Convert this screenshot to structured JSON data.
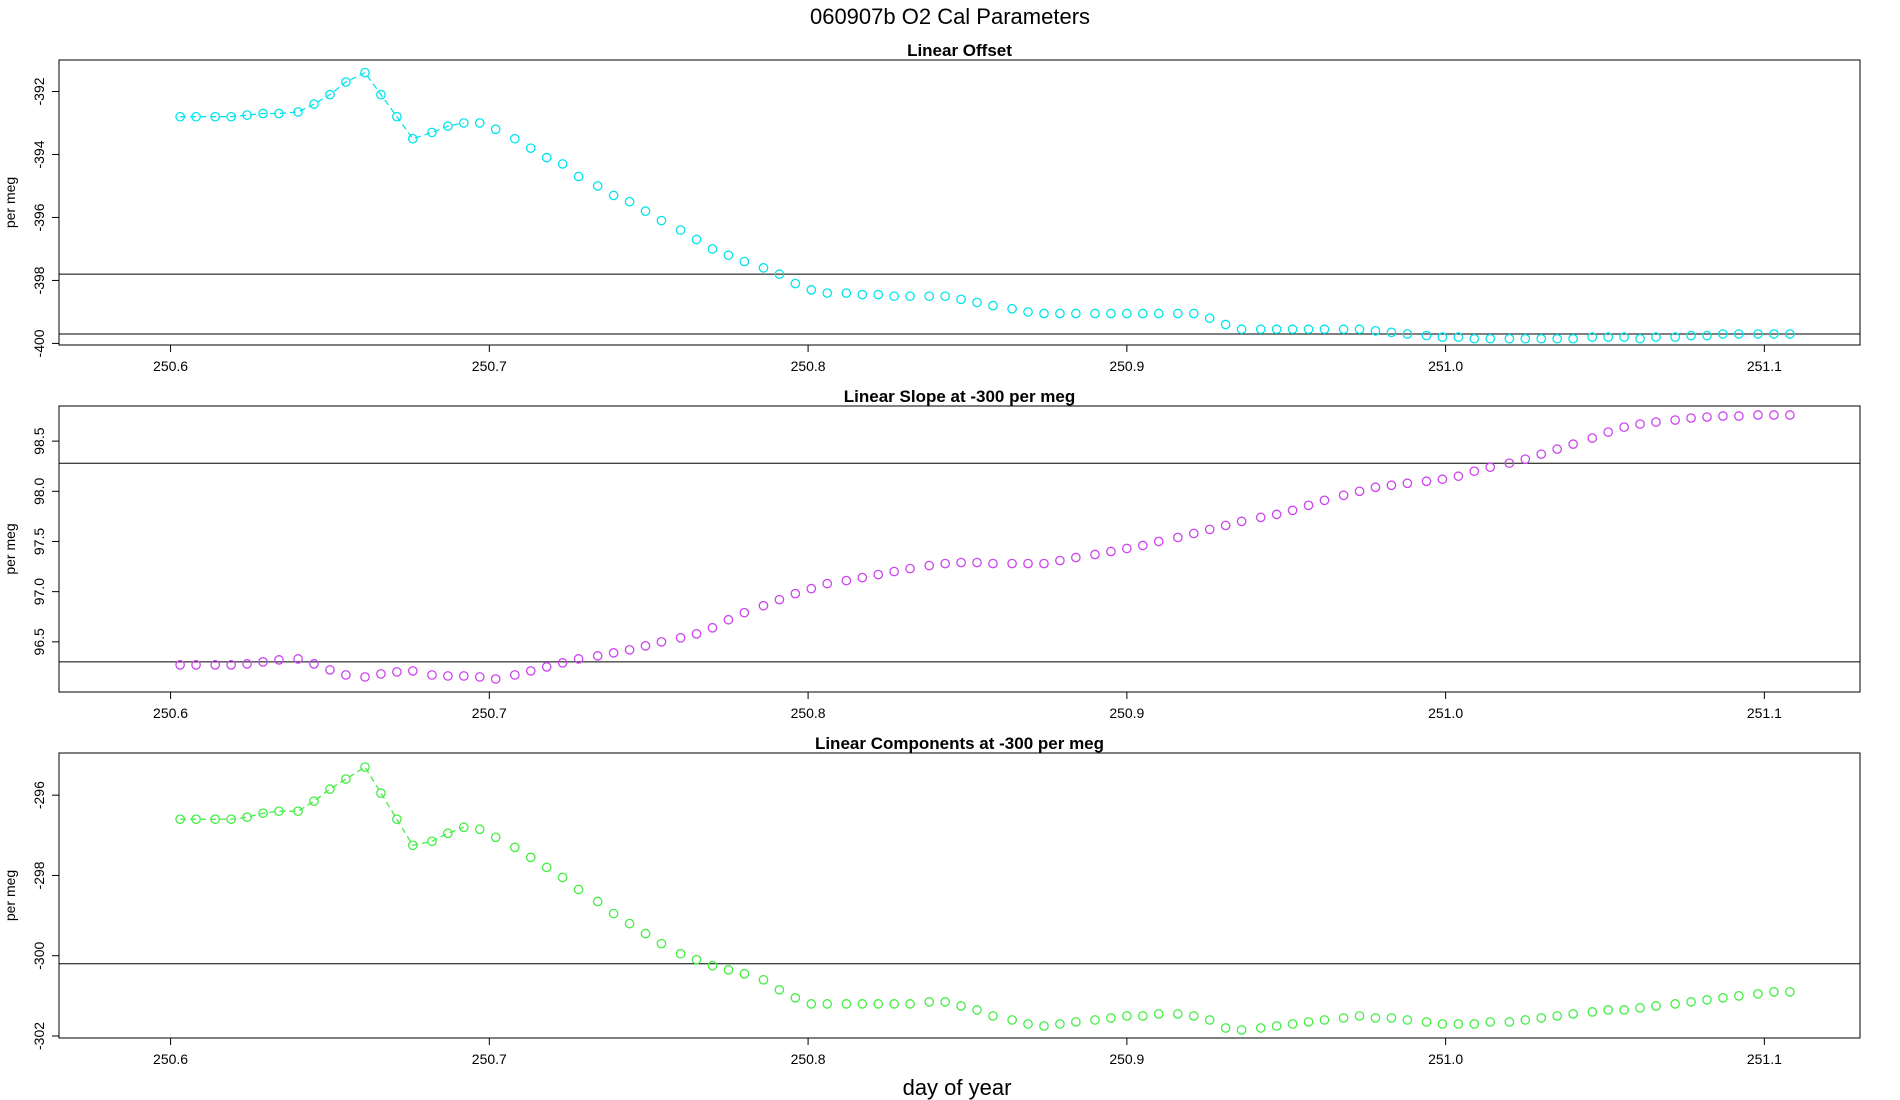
{
  "title": "060907b   O2 Cal Parameters",
  "xlabel": "day of year",
  "chart_data": [
    {
      "type": "scatter",
      "title": "Linear Offset",
      "ylabel": "per meg",
      "color": "#00e5ee",
      "connect_first_points": 10,
      "xlim": [
        250.565,
        251.13
      ],
      "ylim": [
        -400.05,
        -391.0
      ],
      "xticks": [
        250.6,
        250.7,
        250.8,
        250.9,
        251.0,
        251.1
      ],
      "xtick_labels": [
        "250.6",
        "250.7",
        "250.8",
        "250.9",
        "251.0",
        "251.1"
      ],
      "yticks": [
        -392,
        -394,
        -396,
        -398,
        -400
      ],
      "ytick_labels": [
        "-392",
        "-394",
        "-396",
        "-398",
        "-400"
      ],
      "hlines": [
        -397.8,
        -399.7
      ],
      "x": [
        250.603,
        250.608,
        250.614,
        250.619,
        250.624,
        250.629,
        250.634,
        250.64,
        250.645,
        250.65,
        250.655,
        250.661,
        250.666,
        250.671,
        250.676,
        250.682,
        250.687,
        250.692,
        250.697,
        250.702,
        250.708,
        250.713,
        250.718,
        250.723,
        250.728,
        250.734,
        250.739,
        250.744,
        250.749,
        250.754,
        250.76,
        250.765,
        250.77,
        250.775,
        250.78,
        250.786,
        250.791,
        250.796,
        250.801,
        250.806,
        250.812,
        250.817,
        250.822,
        250.827,
        250.832,
        250.838,
        250.843,
        250.848,
        250.853,
        250.858,
        250.864,
        250.869,
        250.874,
        250.879,
        250.884,
        250.89,
        250.895,
        250.9,
        250.905,
        250.91,
        250.916,
        250.921,
        250.926,
        250.931,
        250.936,
        250.942,
        250.947,
        250.952,
        250.957,
        250.962,
        250.968,
        250.973,
        250.978,
        250.983,
        250.988,
        250.994,
        250.999,
        251.004,
        251.009,
        251.014,
        251.02,
        251.025,
        251.03,
        251.035,
        251.04,
        251.046,
        251.051,
        251.056,
        251.061,
        251.066,
        251.072,
        251.077,
        251.082,
        251.087,
        251.092,
        251.098,
        251.103,
        251.108
      ],
      "y": [
        -392.8,
        -392.8,
        -392.8,
        -392.8,
        -392.75,
        -392.7,
        -392.7,
        -392.65,
        -392.4,
        -392.1,
        -391.7,
        -391.4,
        -392.1,
        -392.8,
        -393.5,
        -393.3,
        -393.1,
        -393.0,
        -393.0,
        -393.2,
        -393.5,
        -393.8,
        -394.1,
        -394.3,
        -394.7,
        -395.0,
        -395.3,
        -395.5,
        -395.8,
        -396.1,
        -396.4,
        -396.7,
        -397.0,
        -397.2,
        -397.4,
        -397.6,
        -397.8,
        -398.1,
        -398.3,
        -398.4,
        -398.4,
        -398.45,
        -398.45,
        -398.5,
        -398.5,
        -398.5,
        -398.5,
        -398.6,
        -398.7,
        -398.8,
        -398.9,
        -399.0,
        -399.05,
        -399.05,
        -399.05,
        -399.05,
        -399.05,
        -399.05,
        -399.05,
        -399.05,
        -399.05,
        -399.05,
        -399.2,
        -399.4,
        -399.55,
        -399.55,
        -399.55,
        -399.55,
        -399.55,
        -399.55,
        -399.55,
        -399.55,
        -399.6,
        -399.65,
        -399.7,
        -399.75,
        -399.8,
        -399.8,
        -399.85,
        -399.85,
        -399.85,
        -399.85,
        -399.85,
        -399.85,
        -399.85,
        -399.8,
        -399.8,
        -399.8,
        -399.85,
        -399.8,
        -399.8,
        -399.75,
        -399.75,
        -399.7,
        -399.7,
        -399.7,
        -399.7,
        -399.7
      ]
    },
    {
      "type": "scatter",
      "title": "Linear Slope at -300 per meg",
      "ylabel": "per meg",
      "color": "#cc44ee",
      "connect_first_points": 0,
      "xlim": [
        250.565,
        251.13
      ],
      "ylim": [
        96.0,
        98.85
      ],
      "xticks": [
        250.6,
        250.7,
        250.8,
        250.9,
        251.0,
        251.1
      ],
      "xtick_labels": [
        "250.6",
        "250.7",
        "250.8",
        "250.9",
        "251.0",
        "251.1"
      ],
      "yticks": [
        96.5,
        97.0,
        97.5,
        98.0,
        98.5
      ],
      "ytick_labels": [
        "96.5",
        "97.0",
        "97.5",
        "98.0",
        "98.5"
      ],
      "hlines": [
        98.28,
        96.3
      ],
      "x": [
        250.603,
        250.608,
        250.614,
        250.619,
        250.624,
        250.629,
        250.634,
        250.64,
        250.645,
        250.65,
        250.655,
        250.661,
        250.666,
        250.671,
        250.676,
        250.682,
        250.687,
        250.692,
        250.697,
        250.702,
        250.708,
        250.713,
        250.718,
        250.723,
        250.728,
        250.734,
        250.739,
        250.744,
        250.749,
        250.754,
        250.76,
        250.765,
        250.77,
        250.775,
        250.78,
        250.786,
        250.791,
        250.796,
        250.801,
        250.806,
        250.812,
        250.817,
        250.822,
        250.827,
        250.832,
        250.838,
        250.843,
        250.848,
        250.853,
        250.858,
        250.864,
        250.869,
        250.874,
        250.879,
        250.884,
        250.89,
        250.895,
        250.9,
        250.905,
        250.91,
        250.916,
        250.921,
        250.926,
        250.931,
        250.936,
        250.942,
        250.947,
        250.952,
        250.957,
        250.962,
        250.968,
        250.973,
        250.978,
        250.983,
        250.988,
        250.994,
        250.999,
        251.004,
        251.009,
        251.014,
        251.02,
        251.025,
        251.03,
        251.035,
        251.04,
        251.046,
        251.051,
        251.056,
        251.061,
        251.066,
        251.072,
        251.077,
        251.082,
        251.087,
        251.092,
        251.098,
        251.103,
        251.108
      ],
      "y": [
        96.27,
        96.27,
        96.27,
        96.27,
        96.28,
        96.3,
        96.32,
        96.33,
        96.28,
        96.22,
        96.17,
        96.15,
        96.18,
        96.2,
        96.21,
        96.17,
        96.16,
        96.16,
        96.15,
        96.13,
        96.17,
        96.21,
        96.25,
        96.29,
        96.33,
        96.36,
        96.39,
        96.42,
        96.46,
        96.5,
        96.54,
        96.58,
        96.64,
        96.72,
        96.79,
        96.86,
        96.92,
        96.98,
        97.03,
        97.08,
        97.11,
        97.14,
        97.17,
        97.2,
        97.23,
        97.26,
        97.28,
        97.29,
        97.29,
        97.28,
        97.28,
        97.28,
        97.28,
        97.31,
        97.34,
        97.37,
        97.4,
        97.43,
        97.46,
        97.5,
        97.54,
        97.58,
        97.62,
        97.66,
        97.7,
        97.74,
        97.77,
        97.81,
        97.86,
        97.91,
        97.96,
        98.0,
        98.04,
        98.06,
        98.08,
        98.1,
        98.12,
        98.15,
        98.2,
        98.24,
        98.28,
        98.32,
        98.37,
        98.42,
        98.47,
        98.53,
        98.59,
        98.64,
        98.67,
        98.69,
        98.71,
        98.73,
        98.74,
        98.75,
        98.75,
        98.76,
        98.76,
        98.76
      ]
    },
    {
      "type": "scatter",
      "title": "Linear Components at -300 per meg",
      "ylabel": "per meg",
      "color": "#44ee44",
      "connect_first_points": 10,
      "xlim": [
        250.565,
        251.13
      ],
      "ylim": [
        -302.05,
        -294.95
      ],
      "xticks": [
        250.6,
        250.7,
        250.8,
        250.9,
        251.0,
        251.1
      ],
      "xtick_labels": [
        "250.6",
        "250.7",
        "250.8",
        "250.9",
        "251.0",
        "251.1"
      ],
      "yticks": [
        -296,
        -298,
        -300,
        -302
      ],
      "ytick_labels": [
        "-296",
        "-298",
        "-300",
        "-302"
      ],
      "hlines": [
        -300.2
      ],
      "x": [
        250.603,
        250.608,
        250.614,
        250.619,
        250.624,
        250.629,
        250.634,
        250.64,
        250.645,
        250.65,
        250.655,
        250.661,
        250.666,
        250.671,
        250.676,
        250.682,
        250.687,
        250.692,
        250.697,
        250.702,
        250.708,
        250.713,
        250.718,
        250.723,
        250.728,
        250.734,
        250.739,
        250.744,
        250.749,
        250.754,
        250.76,
        250.765,
        250.77,
        250.775,
        250.78,
        250.786,
        250.791,
        250.796,
        250.801,
        250.806,
        250.812,
        250.817,
        250.822,
        250.827,
        250.832,
        250.838,
        250.843,
        250.848,
        250.853,
        250.858,
        250.864,
        250.869,
        250.874,
        250.879,
        250.884,
        250.89,
        250.895,
        250.9,
        250.905,
        250.91,
        250.916,
        250.921,
        250.926,
        250.931,
        250.936,
        250.942,
        250.947,
        250.952,
        250.957,
        250.962,
        250.968,
        250.973,
        250.978,
        250.983,
        250.988,
        250.994,
        250.999,
        251.004,
        251.009,
        251.014,
        251.02,
        251.025,
        251.03,
        251.035,
        251.04,
        251.046,
        251.051,
        251.056,
        251.061,
        251.066,
        251.072,
        251.077,
        251.082,
        251.087,
        251.092,
        251.098,
        251.103,
        251.108
      ],
      "y": [
        -296.6,
        -296.6,
        -296.6,
        -296.6,
        -296.55,
        -296.45,
        -296.4,
        -296.4,
        -296.15,
        -295.85,
        -295.6,
        -295.3,
        -295.95,
        -296.6,
        -297.25,
        -297.15,
        -296.95,
        -296.8,
        -296.85,
        -297.05,
        -297.3,
        -297.55,
        -297.8,
        -298.05,
        -298.35,
        -298.65,
        -298.95,
        -299.2,
        -299.45,
        -299.7,
        -299.95,
        -300.1,
        -300.25,
        -300.35,
        -300.45,
        -300.6,
        -300.85,
        -301.05,
        -301.2,
        -301.2,
        -301.2,
        -301.2,
        -301.2,
        -301.2,
        -301.2,
        -301.15,
        -301.15,
        -301.25,
        -301.35,
        -301.5,
        -301.6,
        -301.7,
        -301.75,
        -301.7,
        -301.65,
        -301.6,
        -301.55,
        -301.5,
        -301.5,
        -301.45,
        -301.45,
        -301.5,
        -301.6,
        -301.8,
        -301.85,
        -301.8,
        -301.75,
        -301.7,
        -301.65,
        -301.6,
        -301.55,
        -301.5,
        -301.55,
        -301.55,
        -301.6,
        -301.65,
        -301.7,
        -301.7,
        -301.7,
        -301.65,
        -301.65,
        -301.6,
        -301.55,
        -301.5,
        -301.45,
        -301.4,
        -301.35,
        -301.35,
        -301.3,
        -301.25,
        -301.2,
        -301.15,
        -301.1,
        -301.05,
        -301.0,
        -300.95,
        -300.9,
        -300.9
      ]
    }
  ]
}
